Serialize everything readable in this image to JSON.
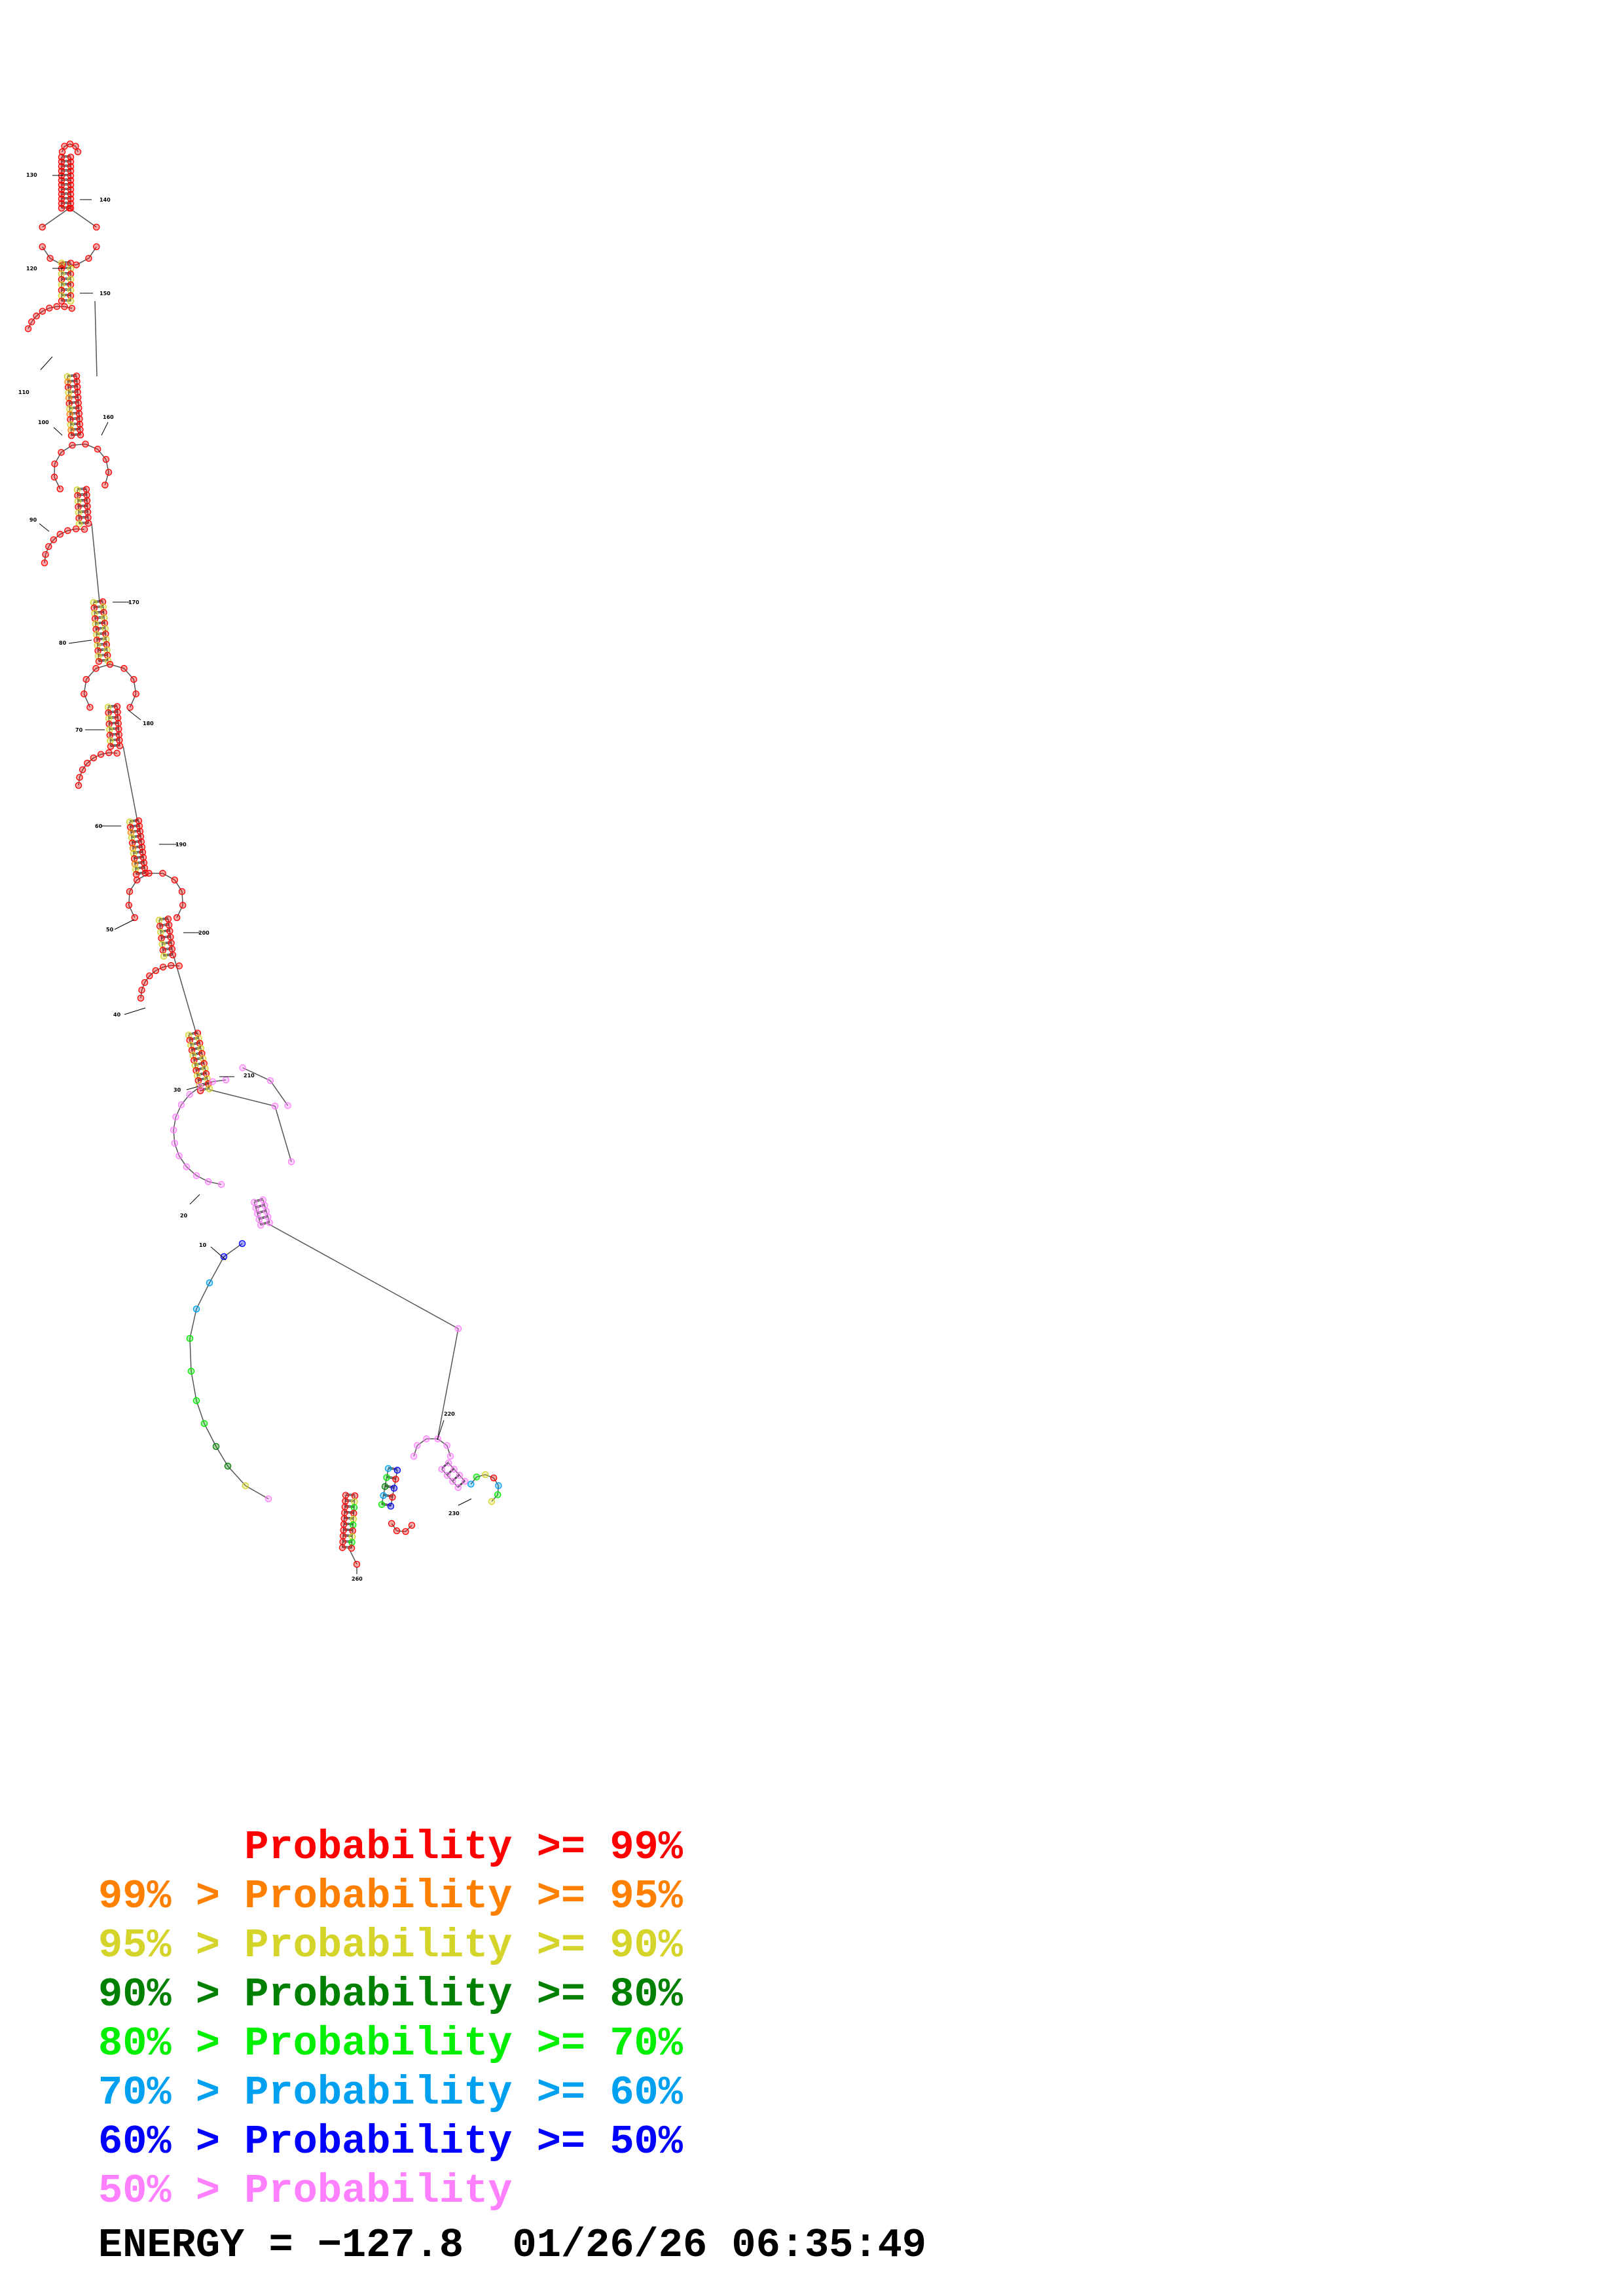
{
  "legend": [
    {
      "prefix": "",
      "label": "Probability >= 99%",
      "color": "#ff0000"
    },
    {
      "prefix": "99% > ",
      "label": "Probability >= 95%",
      "color": "#ff8000"
    },
    {
      "prefix": "95% > ",
      "label": "Probability >= 90%",
      "color": "#d4d42a"
    },
    {
      "prefix": "90% > ",
      "label": "Probability >= 80%",
      "color": "#008000"
    },
    {
      "prefix": "80% > ",
      "label": "Probability >= 70%",
      "color": "#00ee00"
    },
    {
      "prefix": "70% > ",
      "label": "Probability >= 60%",
      "color": "#00a0f0"
    },
    {
      "prefix": "60% > ",
      "label": "Probability >= 50%",
      "color": "#0000ff"
    },
    {
      "prefix": "50% > ",
      "label": "Probability",
      "color": "#ff80ff"
    }
  ],
  "energy": "ENERGY = −127.8  01/26/26 06:35:49",
  "position_labels": [
    "10",
    "20",
    "30",
    "40",
    "50",
    "60",
    "70",
    "80",
    "90",
    "100",
    "110",
    "120",
    "130",
    "140",
    "150",
    "160",
    "170",
    "180",
    "190",
    "200",
    "210",
    "220",
    "230",
    "260"
  ]
}
